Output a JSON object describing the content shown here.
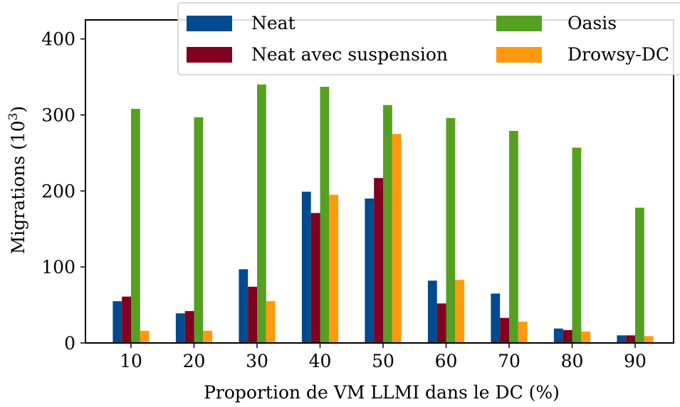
{
  "chart_data": {
    "type": "bar",
    "title": "",
    "xlabel": "Proportion de VM LLMI dans le DC (%)",
    "ylabel_main": "Migrations (10",
    "ylabel_exp": "3",
    "ylabel_close": ")",
    "categories": [
      "10",
      "20",
      "30",
      "40",
      "50",
      "60",
      "70",
      "80",
      "90"
    ],
    "ylim": [
      0,
      425
    ],
    "yticks": [
      0,
      100,
      200,
      300,
      400
    ],
    "grid": false,
    "legend_position": "top-right",
    "series": [
      {
        "name": "Neat",
        "color": "#004a8f",
        "values": [
          55,
          39,
          97,
          199,
          190,
          82,
          65,
          19,
          10
        ]
      },
      {
        "name": "Neat avec suspension",
        "color": "#7f0020",
        "values": [
          61,
          42,
          74,
          171,
          217,
          52,
          33,
          17,
          10
        ]
      },
      {
        "name": "Oasis",
        "color": "#56a021",
        "values": [
          308,
          297,
          340,
          337,
          313,
          296,
          279,
          257,
          178
        ]
      },
      {
        "name": "Drowsy-DC",
        "color": "#ff9a0e",
        "values": [
          16,
          16,
          55,
          195,
          275,
          83,
          28,
          15,
          9
        ]
      }
    ]
  }
}
